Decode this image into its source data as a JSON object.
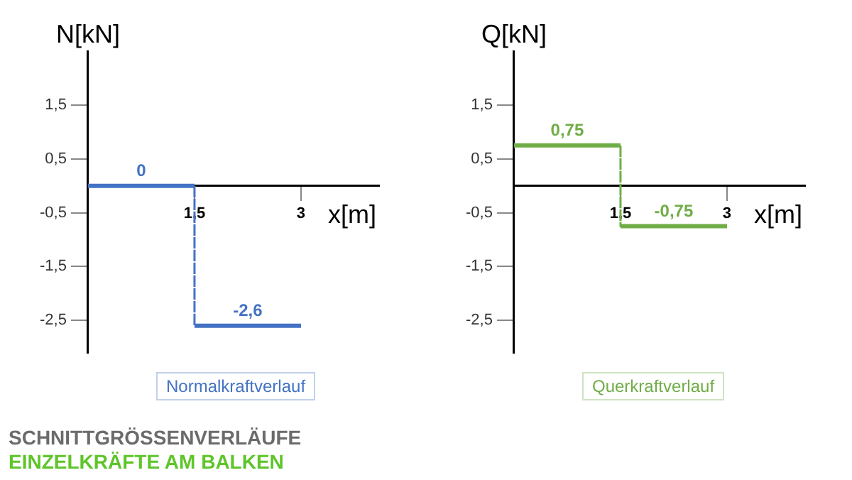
{
  "chart_data": [
    {
      "type": "line",
      "title": "Normalkraftverlauf",
      "xlabel": "x[m]",
      "ylabel": "N[kN]",
      "annotations": [
        "SCHNITTGRÖSSENVERLÄUFE",
        "EINZELKRÄFTE AM BALKEN"
      ],
      "x": [
        0,
        0.75,
        1.5,
        1.5,
        2.25,
        3
      ],
      "series": [
        {
          "color": "#4472c4",
          "values": [
            0,
            0,
            0,
            -2.6,
            -2.6,
            -2.6
          ],
          "value_labels": [
            null,
            "0",
            null,
            null,
            "-2,6",
            null
          ]
        }
      ],
      "xlim": [
        0,
        4.1
      ],
      "xticks": [
        {
          "value": 1.5,
          "label": "1,5"
        },
        3
      ],
      "ylim": [
        -3.1,
        2.5
      ],
      "yticks": [
        {
          "value": 1.5,
          "label": "1,5"
        },
        {
          "value": 0.5,
          "label": "0,5"
        },
        {
          "value": -0.5,
          "label": "-0,5"
        },
        {
          "value": -1.5,
          "label": "-1,5"
        },
        {
          "value": -2.5,
          "label": "-2,5"
        }
      ],
      "grid": false,
      "legend": false,
      "marker": "none",
      "line_style": "solid"
    },
    {
      "type": "line",
      "title": "Querkraftverlauf",
      "xlabel": "x[m]",
      "ylabel": "Q[kN]",
      "x": [
        0,
        0.75,
        1.5,
        1.5,
        2.25,
        3
      ],
      "series": [
        {
          "color": "#70ad47",
          "values": [
            0.75,
            0.75,
            0.75,
            -0.75,
            -0.75,
            -0.75
          ],
          "value_labels": [
            null,
            "0,75",
            null,
            null,
            "-0,75",
            null
          ]
        }
      ],
      "xlim": [
        0,
        4.1
      ],
      "xticks": [
        {
          "value": 1.5,
          "label": "1,5"
        },
        3
      ],
      "ylim": [
        -3.1,
        2.5
      ],
      "yticks": [
        {
          "value": 1.5,
          "label": "1,5"
        },
        {
          "value": 0.5,
          "label": "0,5"
        },
        {
          "value": -0.5,
          "label": "-0,5"
        },
        {
          "value": -1.5,
          "label": "-1,5"
        },
        {
          "value": -2.5,
          "label": "-2,5"
        }
      ],
      "grid": false,
      "legend": false,
      "marker": "none",
      "line_style": "solid"
    }
  ]
}
